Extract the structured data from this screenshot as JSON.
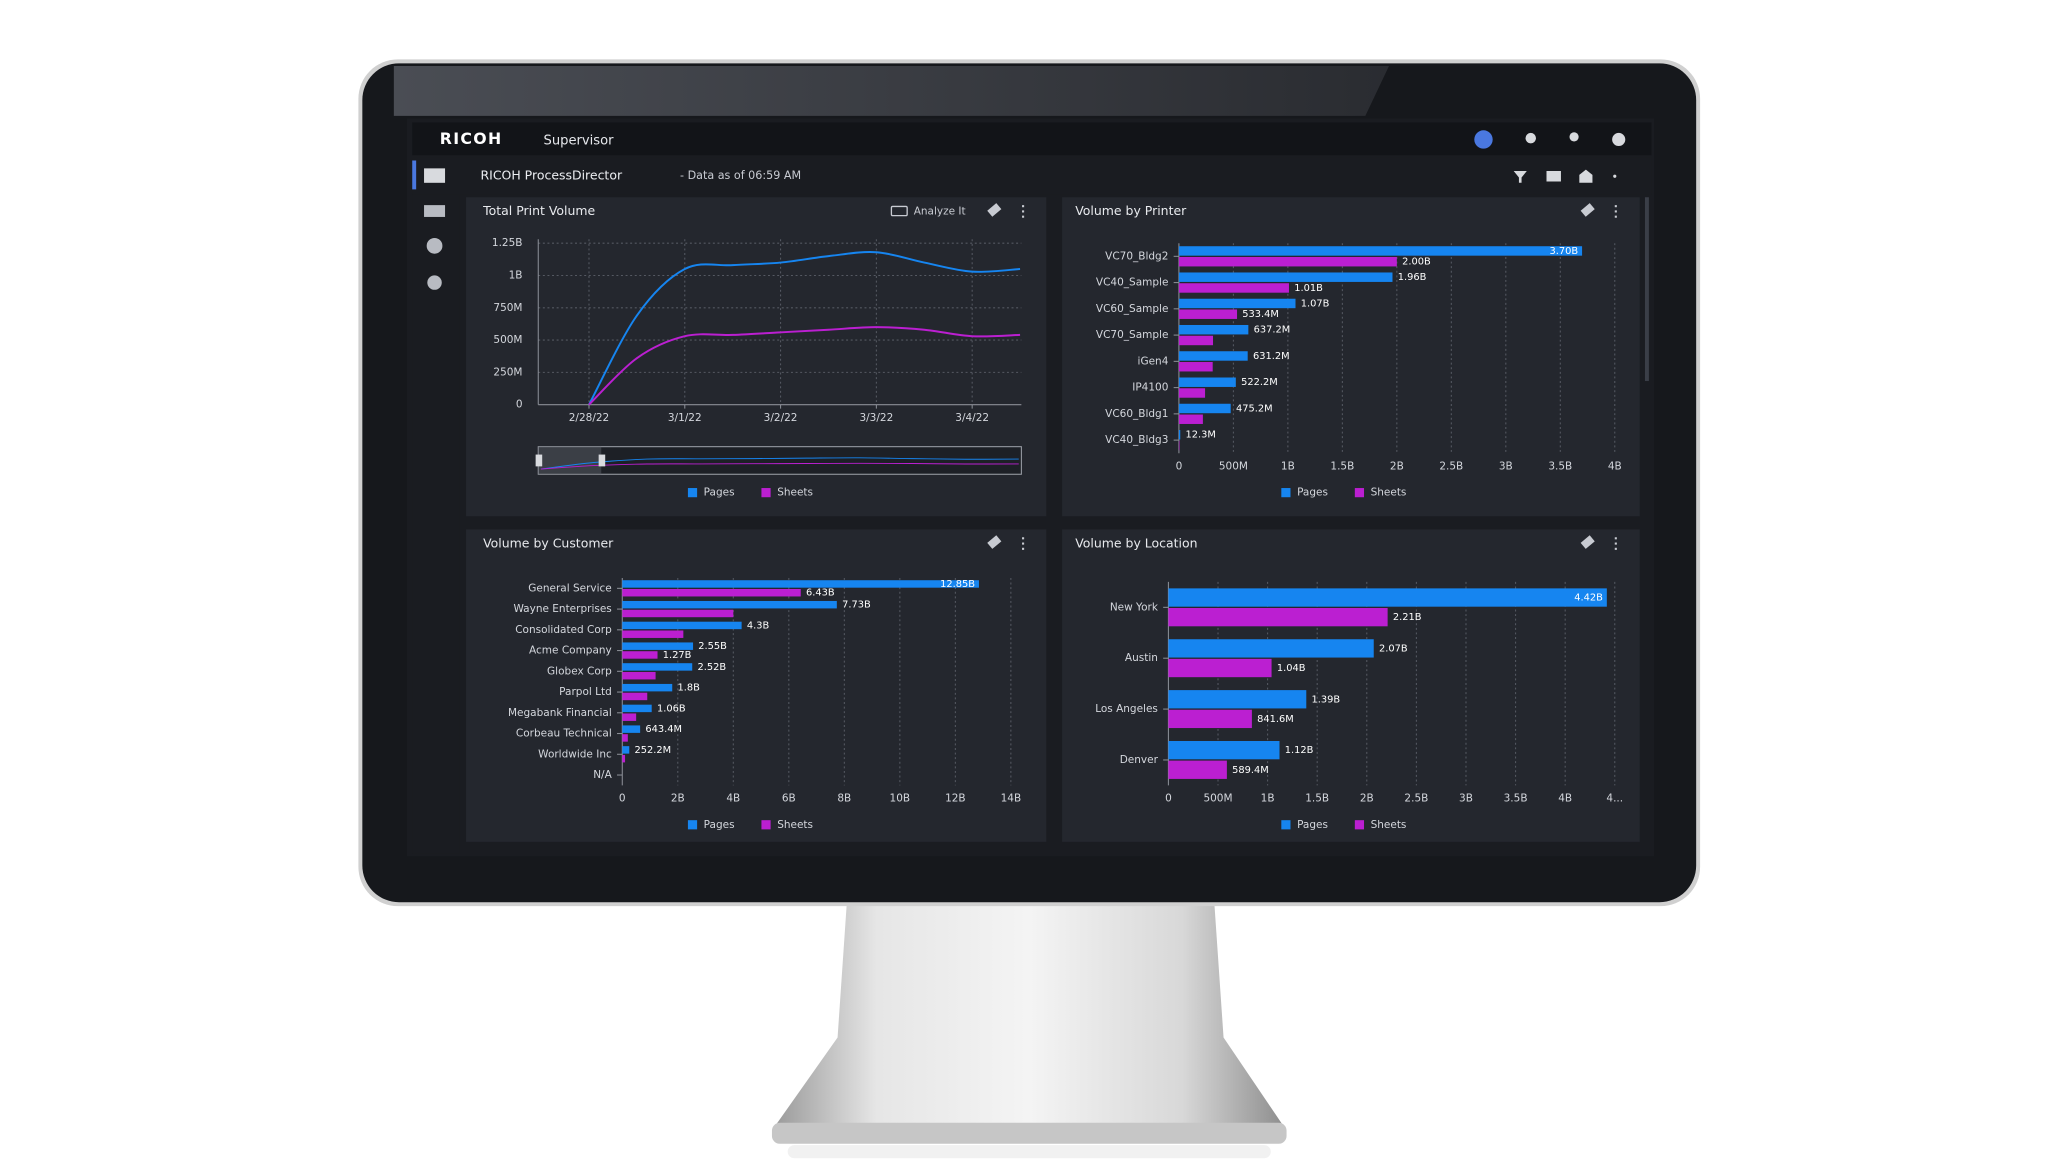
{
  "header": {
    "brand": "RICOH",
    "product": "Supervisor"
  },
  "toolbar": {
    "title": "RICOH ProcessDirector",
    "status": "- Data as of 06:59 AM"
  },
  "chart_data": [
    {
      "type": "line",
      "title": "Total Print Volume",
      "action": "Analyze It",
      "categories": [
        "2/28/22",
        null,
        "3/1/22",
        null,
        "3/2/22",
        null,
        "3/3/22",
        null,
        "3/4/22",
        null
      ],
      "series": [
        {
          "name": "Pages",
          "color": "#1685f0",
          "values": [
            0,
            690000000,
            1050000000,
            1080000000,
            1100000000,
            1150000000,
            1180000000,
            1100000000,
            1030000000,
            1050000000
          ]
        },
        {
          "name": "Sheets",
          "color": "#bb1fd1",
          "values": [
            0,
            360000000,
            530000000,
            540000000,
            560000000,
            580000000,
            600000000,
            580000000,
            530000000,
            540000000
          ]
        }
      ],
      "ylim": [
        0,
        1250000000
      ],
      "yticks": [
        0,
        {
          "value": 250000000,
          "label": "250M"
        },
        {
          "value": 500000000,
          "label": "500M"
        },
        {
          "value": 750000000,
          "label": "750M"
        },
        {
          "value": 1000000000,
          "label": "1B"
        },
        {
          "value": 1250000000,
          "label": "1.25B"
        }
      ],
      "grid": true
    },
    {
      "type": "bar",
      "orientation": "horizontal",
      "title": "Volume by Printer",
      "categories": [
        "VC70_Bldg2",
        "VC40_Sample",
        "VC60_Sample",
        "VC70_Sample",
        "iGen4",
        "IP4100",
        "VC60_Bldg1",
        "VC40_Bldg3"
      ],
      "series": [
        {
          "name": "Pages",
          "color": "#1685f0",
          "values": [
            3700000000,
            1960000000,
            1070000000,
            637200000,
            631200000,
            522200000,
            475200000,
            12300000
          ],
          "value_labels": [
            "3.70B",
            "1.96B",
            "1.07B",
            "637.2M",
            "631.2M",
            "522.2M",
            "475.2M",
            "12.3M"
          ]
        },
        {
          "name": "Sheets",
          "color": "#bb1fd1",
          "values": [
            2000000000,
            1010000000,
            533400000,
            313000000,
            310000000,
            240000000,
            220000000,
            5000000
          ],
          "value_labels": [
            "2.00B",
            "1.01B",
            "533.4M",
            null,
            null,
            null,
            null,
            null
          ]
        }
      ],
      "xlim": [
        0,
        4000000000
      ],
      "xticks": [
        0,
        {
          "value": 500000000,
          "label": "500M"
        },
        {
          "value": 1000000000,
          "label": "1B"
        },
        {
          "value": 1500000000,
          "label": "1.5B"
        },
        {
          "value": 2000000000,
          "label": "2B"
        },
        {
          "value": 2500000000,
          "label": "2.5B"
        },
        {
          "value": 3000000000,
          "label": "3B"
        },
        {
          "value": 3500000000,
          "label": "3.5B"
        },
        {
          "value": 4000000000,
          "label": "4B"
        }
      ],
      "grid": true
    },
    {
      "type": "bar",
      "orientation": "horizontal",
      "title": "Volume by Customer",
      "categories": [
        "General Service",
        "Wayne Enterprises",
        "Consolidated Corp",
        "Acme Company",
        "Globex Corp",
        "Parpol Ltd",
        "Megabank Financial",
        "Corbeau Technical",
        "Worldwide Inc",
        "N/A"
      ],
      "series": [
        {
          "name": "Pages",
          "color": "#1685f0",
          "values": [
            12850000000,
            7730000000,
            4300000000,
            2550000000,
            2520000000,
            1800000000,
            1060000000,
            643400000,
            252200000,
            0
          ],
          "value_labels": [
            "12.85B",
            "7.73B",
            "4.3B",
            "2.55B",
            "2.52B",
            "1.8B",
            "1.06B",
            "643.4M",
            "252.2M",
            null
          ]
        },
        {
          "name": "Sheets",
          "color": "#bb1fd1",
          "values": [
            6430000000,
            4000000000,
            2200000000,
            1270000000,
            1200000000,
            900000000,
            500000000,
            200000000,
            100000000,
            0
          ],
          "value_labels": [
            "6.43B",
            null,
            null,
            "1.27B",
            null,
            null,
            null,
            null,
            null,
            null
          ]
        }
      ],
      "xlim": [
        0,
        14000000000
      ],
      "xticks": [
        0,
        {
          "value": 2000000000,
          "label": "2B"
        },
        {
          "value": 4000000000,
          "label": "4B"
        },
        {
          "value": 6000000000,
          "label": "6B"
        },
        {
          "value": 8000000000,
          "label": "8B"
        },
        {
          "value": 10000000000,
          "label": "10B"
        },
        {
          "value": 12000000000,
          "label": "12B"
        },
        {
          "value": 14000000000,
          "label": "14B"
        }
      ],
      "grid": true
    },
    {
      "type": "bar",
      "orientation": "horizontal",
      "title": "Volume by Location",
      "categories": [
        "New York",
        "Austin",
        "Los Angeles",
        "Denver"
      ],
      "series": [
        {
          "name": "Pages",
          "color": "#1685f0",
          "values": [
            4420000000,
            2070000000,
            1390000000,
            1120000000
          ],
          "value_labels": [
            "4.42B",
            "2.07B",
            "1.39B",
            "1.12B"
          ]
        },
        {
          "name": "Sheets",
          "color": "#bb1fd1",
          "values": [
            2210000000,
            1040000000,
            841600000,
            589400000
          ],
          "value_labels": [
            "2.21B",
            "1.04B",
            "841.6M",
            "589.4M"
          ]
        }
      ],
      "xlim": [
        0,
        4500000000
      ],
      "xticks": [
        0,
        {
          "value": 500000000,
          "label": "500M"
        },
        {
          "value": 1000000000,
          "label": "1B"
        },
        {
          "value": 1500000000,
          "label": "1.5B"
        },
        {
          "value": 2000000000,
          "label": "2B"
        },
        {
          "value": 2500000000,
          "label": "2.5B"
        },
        {
          "value": 3000000000,
          "label": "3B"
        },
        {
          "value": 3500000000,
          "label": "3.5B"
        },
        {
          "value": 4000000000,
          "label": "4B"
        },
        {
          "value": 4500000000,
          "label": "4..."
        }
      ],
      "grid": true
    }
  ]
}
